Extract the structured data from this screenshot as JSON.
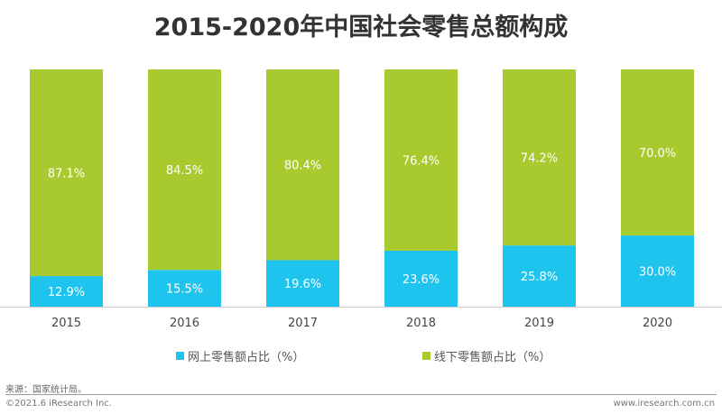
{
  "chart_data": {
    "type": "bar",
    "stacked": true,
    "title": "2015-2020年中国社会零售总额构成",
    "categories": [
      "2015",
      "2016",
      "2017",
      "2018",
      "2019",
      "2020"
    ],
    "ylim": [
      0,
      100
    ],
    "grid": false,
    "legend_placement": "bottom",
    "series": [
      {
        "name": "网上零售额占比（%）",
        "color": "#1ec4ee",
        "values": [
          12.9,
          15.5,
          19.6,
          23.6,
          25.8,
          30.0
        ],
        "labels": [
          "12.9%",
          "15.5%",
          "19.6%",
          "23.6%",
          "25.8%",
          "30.0%"
        ]
      },
      {
        "name": "线下零售额占比（%）",
        "color": "#a9ca2f",
        "values": [
          87.1,
          84.5,
          80.4,
          76.4,
          74.2,
          70.0
        ],
        "labels": [
          "87.1%",
          "84.5%",
          "80.4%",
          "76.4%",
          "74.2%",
          "70.0%"
        ]
      }
    ]
  },
  "footer": {
    "source": "来源：国家统计局。",
    "copyright": "©2021.6 iResearch Inc.",
    "website": "www.iresearch.com.cn"
  }
}
